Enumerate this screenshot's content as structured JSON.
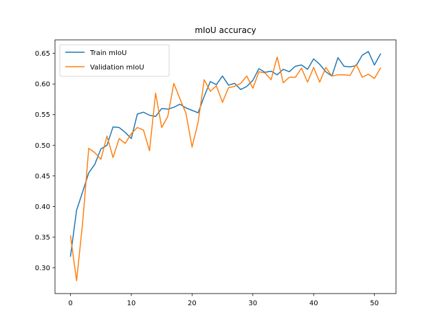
{
  "chart_data": {
    "type": "line",
    "title": "mIoU accuracy",
    "xlabel": "",
    "ylabel": "",
    "xlim": [
      -2.55,
      53.55
    ],
    "ylim": [
      0.258,
      0.672
    ],
    "xticks": [
      0,
      10,
      20,
      30,
      40,
      50
    ],
    "yticks": [
      0.3,
      0.35,
      0.4,
      0.45,
      0.5,
      0.55,
      0.6,
      0.65
    ],
    "ytick_labels": [
      "0.30",
      "0.35",
      "0.40",
      "0.45",
      "0.50",
      "0.55",
      "0.60",
      "0.65"
    ],
    "grid": false,
    "legend_position": "upper-left",
    "x": [
      0,
      1,
      2,
      3,
      4,
      5,
      6,
      7,
      8,
      9,
      10,
      11,
      12,
      13,
      14,
      15,
      16,
      17,
      18,
      19,
      20,
      21,
      22,
      23,
      24,
      25,
      26,
      27,
      28,
      29,
      30,
      31,
      32,
      33,
      34,
      35,
      36,
      37,
      38,
      39,
      40,
      41,
      42,
      43,
      44,
      45,
      46,
      47,
      48,
      49,
      50,
      51
    ],
    "series": [
      {
        "name": "Train mIoU",
        "color": "#1f77b4",
        "values": [
          0.319,
          0.394,
          0.424,
          0.455,
          0.469,
          0.494,
          0.5,
          0.53,
          0.529,
          0.521,
          0.511,
          0.551,
          0.554,
          0.549,
          0.547,
          0.56,
          0.559,
          0.562,
          0.567,
          0.561,
          0.557,
          0.553,
          0.58,
          0.604,
          0.599,
          0.613,
          0.598,
          0.601,
          0.591,
          0.596,
          0.606,
          0.625,
          0.619,
          0.621,
          0.615,
          0.624,
          0.62,
          0.629,
          0.631,
          0.624,
          0.641,
          0.632,
          0.62,
          0.613,
          0.643,
          0.629,
          0.628,
          0.63,
          0.647,
          0.653,
          0.631,
          0.649
        ]
      },
      {
        "name": "Validation mIoU",
        "color": "#ff7f0e",
        "values": [
          0.352,
          0.279,
          0.374,
          0.495,
          0.488,
          0.477,
          0.515,
          0.48,
          0.511,
          0.503,
          0.519,
          0.529,
          0.525,
          0.491,
          0.585,
          0.529,
          0.547,
          0.601,
          0.576,
          0.552,
          0.497,
          0.538,
          0.607,
          0.588,
          0.597,
          0.57,
          0.594,
          0.596,
          0.601,
          0.613,
          0.593,
          0.62,
          0.618,
          0.607,
          0.644,
          0.602,
          0.611,
          0.611,
          0.626,
          0.603,
          0.627,
          0.603,
          0.627,
          0.613,
          0.615,
          0.615,
          0.614,
          0.632,
          0.611,
          0.616,
          0.609,
          0.626
        ]
      }
    ]
  }
}
